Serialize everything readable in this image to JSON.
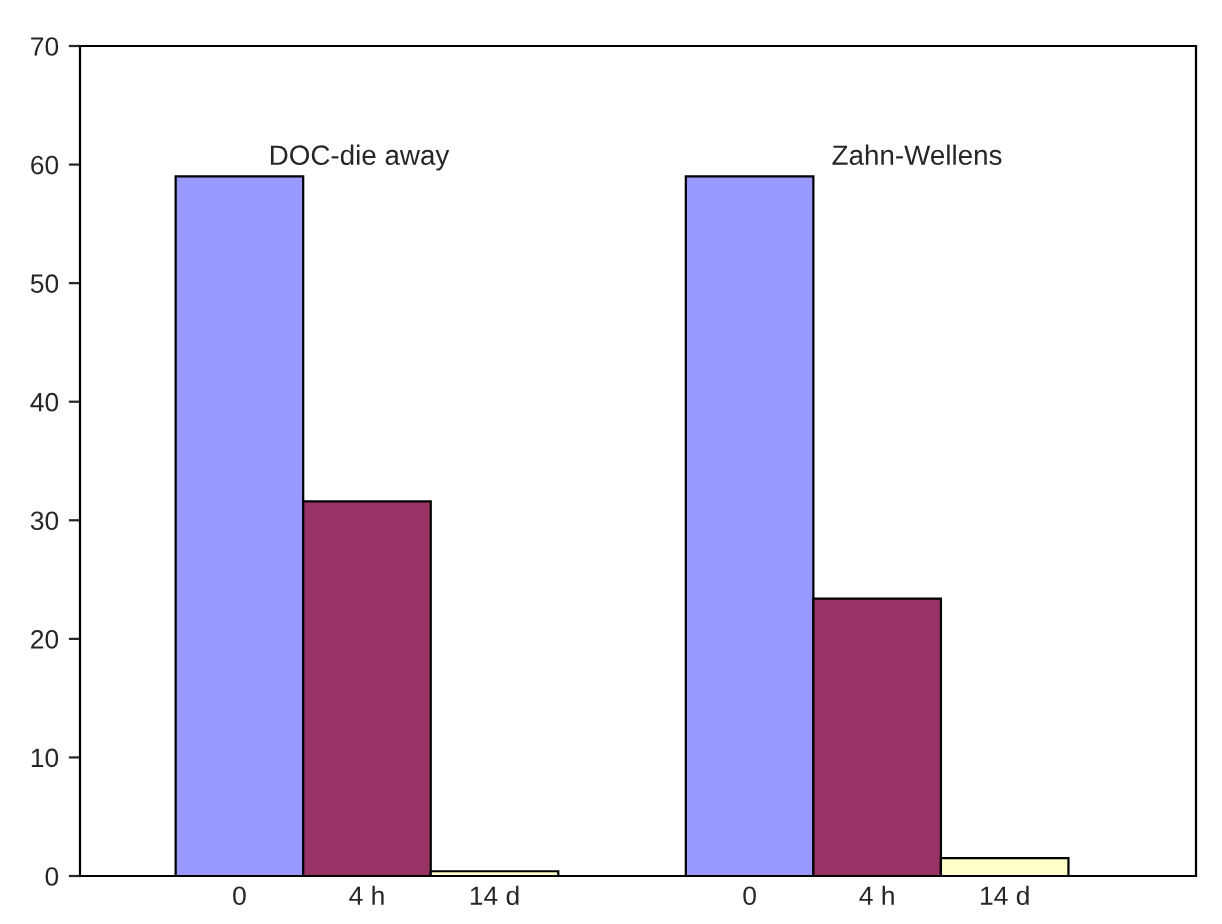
{
  "chart_data": {
    "type": "bar",
    "categories": [
      "0",
      "4 h",
      "14 d",
      null,
      "0",
      "4 h",
      "14 d"
    ],
    "values": [
      59,
      31.6,
      0.4,
      null,
      59,
      23.4,
      1.5
    ],
    "colors": [
      "#9999ff",
      "#993366",
      "#ffffcc",
      null,
      "#9999ff",
      "#993366",
      "#ffffcc"
    ],
    "ylim": [
      0,
      70
    ],
    "yticks": [
      0,
      10,
      20,
      30,
      40,
      50,
      60,
      70
    ],
    "grid": false,
    "legend": false,
    "annotations": [
      "DOC-die away",
      "Zahn-Wellens"
    ]
  }
}
